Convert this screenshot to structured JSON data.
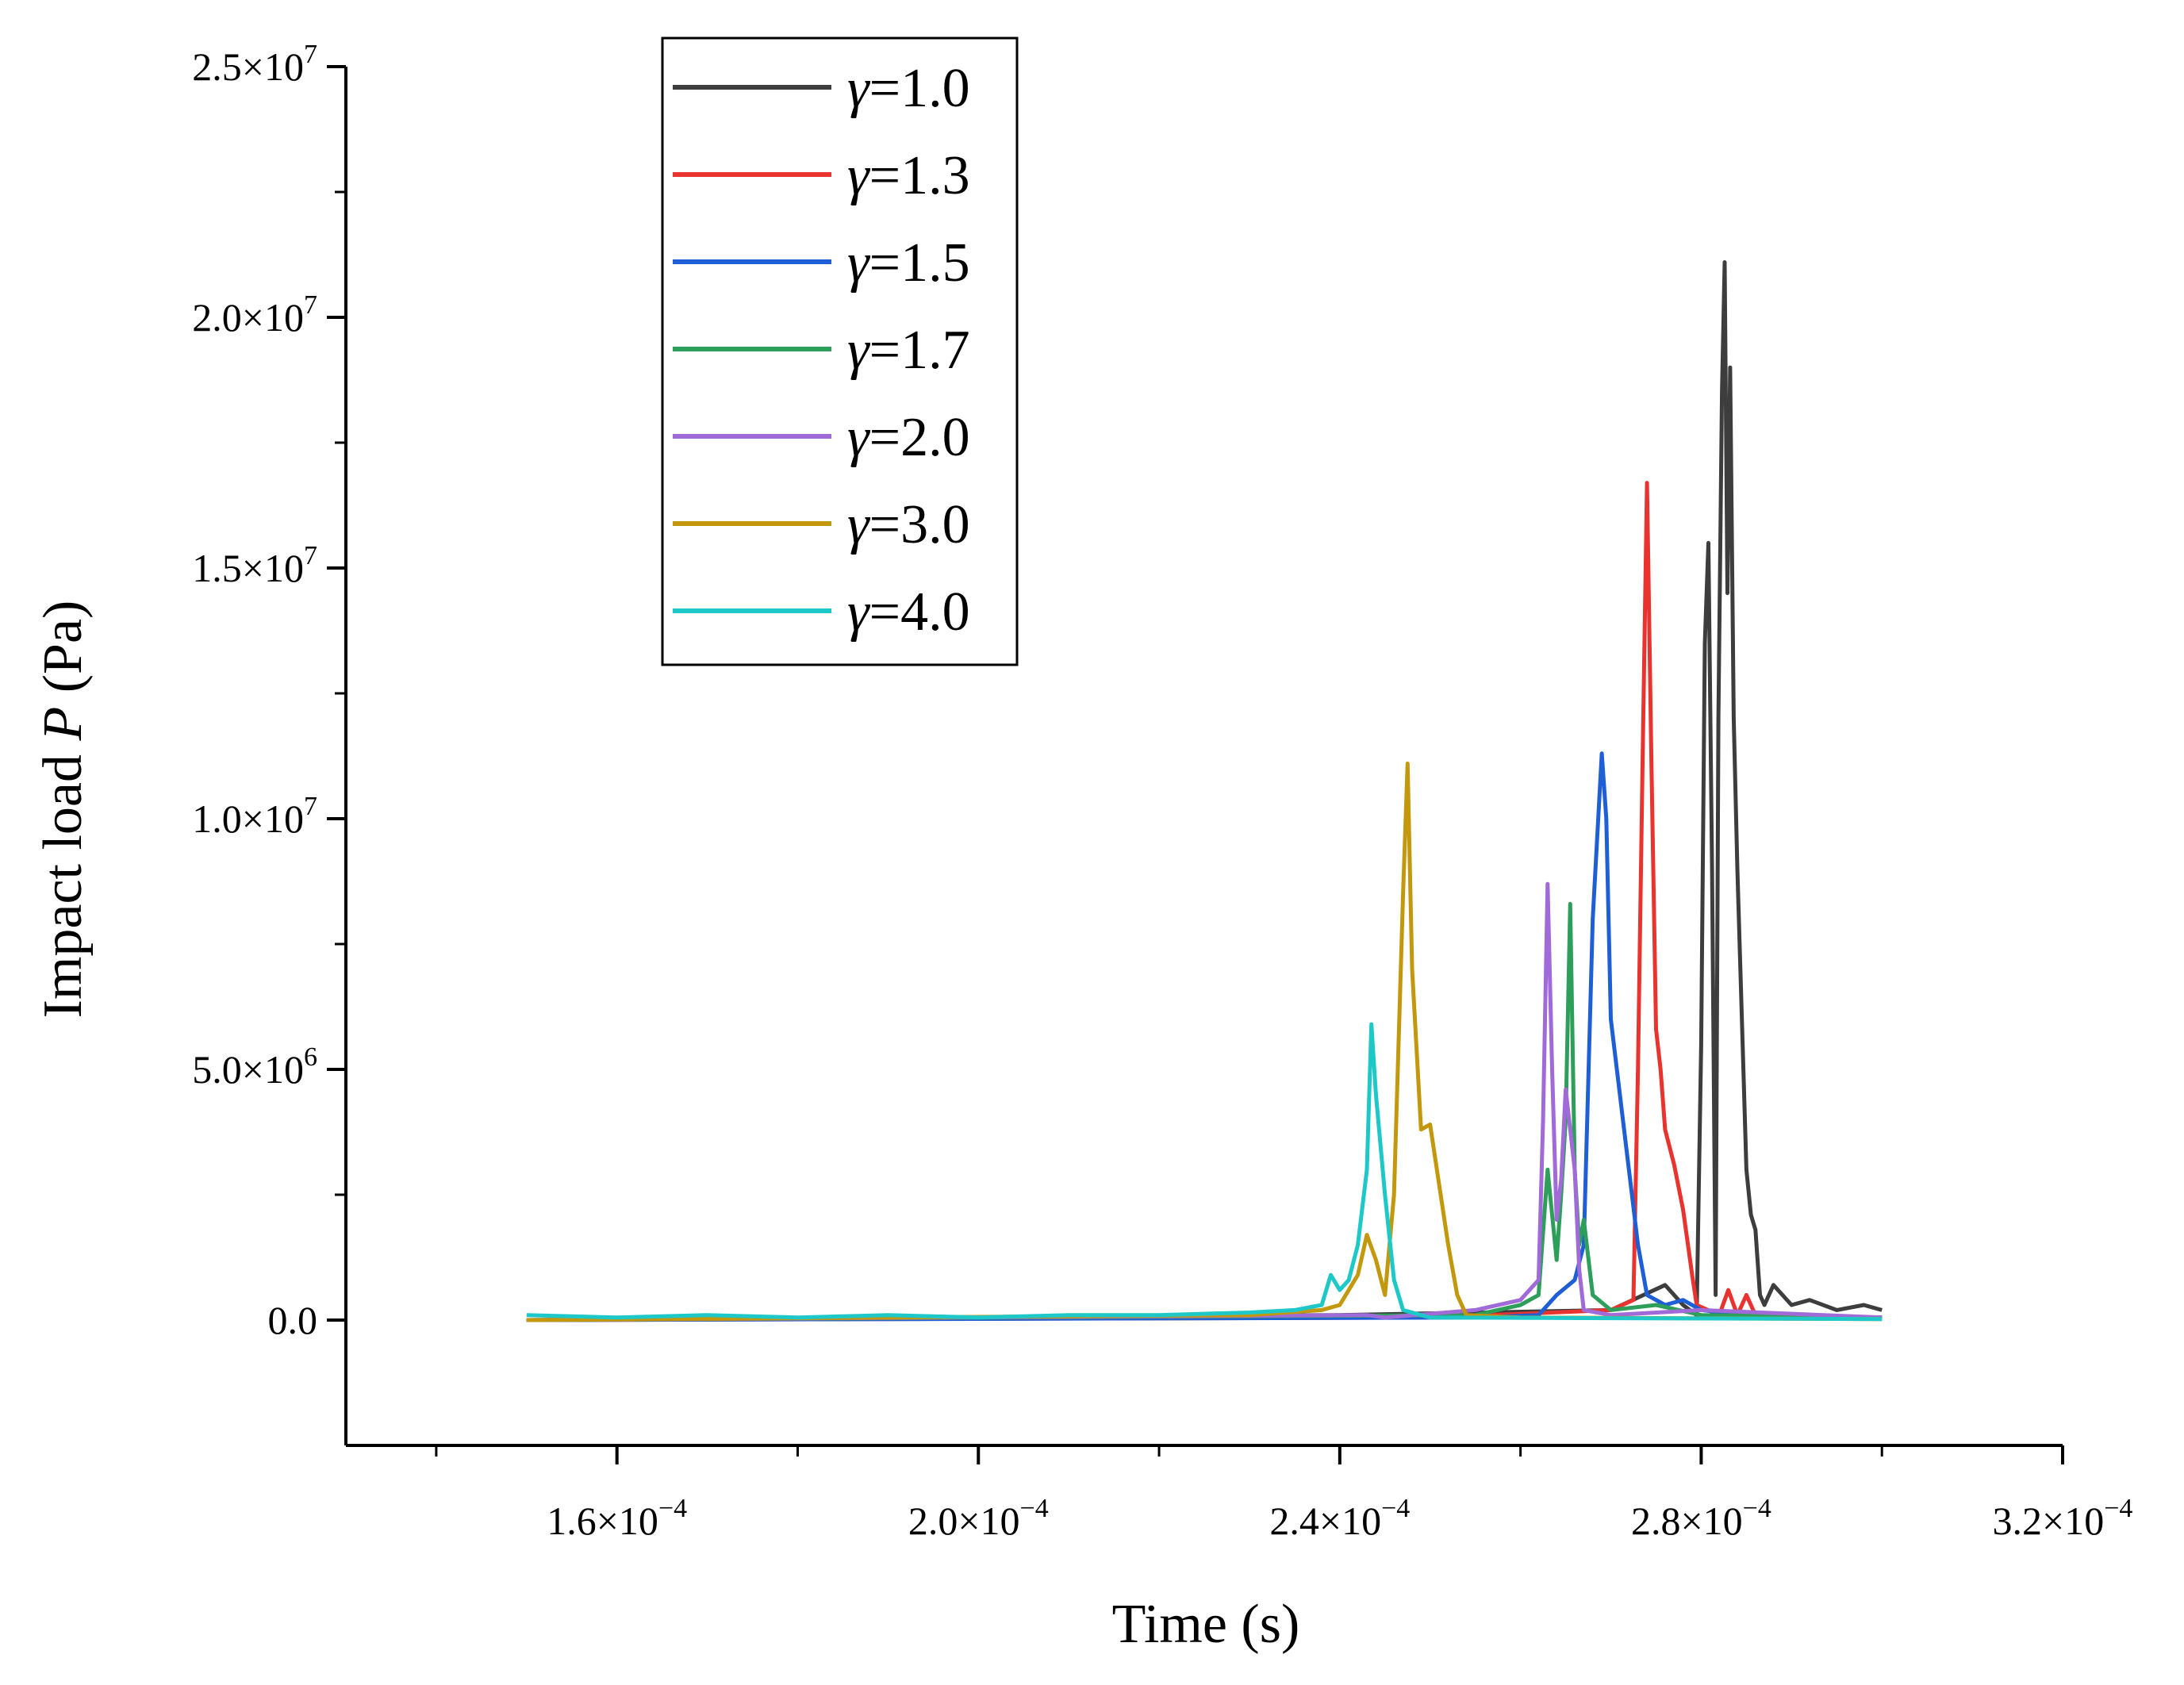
{
  "chart_data": {
    "type": "line",
    "title": "",
    "xlabel": "Time (s)",
    "ylabel_prefix": "Impact load ",
    "ylabel_var": "P",
    "ylabel_suffix": " (Pa)",
    "xlim": [
      0.00013,
      0.00032
    ],
    "ylim": [
      -2500000,
      25000000
    ],
    "x_ticks": [
      0.00016,
      0.0002,
      0.00024,
      0.00028,
      0.00032
    ],
    "x_minor_ticks": [
      0.00014,
      0.00018,
      0.00022,
      0.00026,
      0.0003
    ],
    "x_tick_labels": [
      {
        "mant": "1.6×10",
        "exp": "−4"
      },
      {
        "mant": "2.0×10",
        "exp": "−4"
      },
      {
        "mant": "2.4×10",
        "exp": "−4"
      },
      {
        "mant": "2.8×10",
        "exp": "−4"
      },
      {
        "mant": "3.2×10",
        "exp": "−4"
      }
    ],
    "y_ticks": [
      0,
      5000000,
      10000000,
      15000000,
      20000000,
      25000000
    ],
    "y_minor_ticks": [
      2500000,
      7500000,
      12500000,
      17500000,
      22500000
    ],
    "y_tick_labels": [
      {
        "mant": "0.0",
        "exp": ""
      },
      {
        "mant": "5.0×10",
        "exp": "6"
      },
      {
        "mant": "1.0×10",
        "exp": "7"
      },
      {
        "mant": "1.5×10",
        "exp": "7"
      },
      {
        "mant": "2.0×10",
        "exp": "7"
      },
      {
        "mant": "2.5×10",
        "exp": "7"
      }
    ],
    "legend_position": "top-left",
    "series": [
      {
        "name": "γ=1.0",
        "symbol": "γ",
        "value_text": "=1.0",
        "color": "#3d3d3d",
        "points": [
          [
            0.00015,
            0
          ],
          [
            0.00024,
            100000.0
          ],
          [
            0.00027,
            200000.0
          ],
          [
            0.000276,
            700000.0
          ],
          [
            0.000278,
            300000.0
          ],
          [
            0.0002795,
            100000.0
          ],
          [
            0.00028,
            5500000.0
          ],
          [
            0.0002804,
            13500000.0
          ],
          [
            0.0002808,
            15500000.0
          ],
          [
            0.0002812,
            9000000.0
          ],
          [
            0.0002816,
            500000.0
          ],
          [
            0.0002819,
            12000000.0
          ],
          [
            0.0002823,
            18500000.0
          ],
          [
            0.0002826,
            21100000.0
          ],
          [
            0.0002829,
            14500000.0
          ],
          [
            0.0002832,
            19000000.0
          ],
          [
            0.0002836,
            12000000.0
          ],
          [
            0.000284,
            9000000.0
          ],
          [
            0.0002845,
            6000000.0
          ],
          [
            0.000285,
            3000000.0
          ],
          [
            0.0002855,
            2100000.0
          ],
          [
            0.000286,
            1800000.0
          ],
          [
            0.0002865,
            500000.0
          ],
          [
            0.000287,
            300000.0
          ],
          [
            0.000288,
            700000.0
          ],
          [
            0.00029,
            300000.0
          ],
          [
            0.000292,
            400000.0
          ],
          [
            0.000295,
            200000.0
          ],
          [
            0.000298,
            300000.0
          ],
          [
            0.0003,
            200000.0
          ]
        ]
      },
      {
        "name": "γ=1.3",
        "symbol": "γ",
        "value_text": "=1.3",
        "color": "#e8332e",
        "points": [
          [
            0.00015,
            0
          ],
          [
            0.00025,
            50000.0
          ],
          [
            0.00027,
            200000.0
          ],
          [
            0.0002725,
            400000.0
          ],
          [
            0.000273,
            5000000.0
          ],
          [
            0.0002735,
            11000000.0
          ],
          [
            0.000274,
            16700000.0
          ],
          [
            0.0002745,
            11000000.0
          ],
          [
            0.000275,
            5800000.0
          ],
          [
            0.0002755,
            5000000.0
          ],
          [
            0.000276,
            3800000.0
          ],
          [
            0.000277,
            3100000.0
          ],
          [
            0.000278,
            2200000.0
          ],
          [
            0.000279,
            900000.0
          ],
          [
            0.0002795,
            300000.0
          ],
          [
            0.000282,
            100000.0
          ],
          [
            0.000283,
            600000.0
          ],
          [
            0.000284,
            100000.0
          ],
          [
            0.000285,
            500000.0
          ],
          [
            0.000286,
            100000.0
          ],
          [
            0.00029,
            100000.0
          ],
          [
            0.0003,
            50000.0
          ]
        ]
      },
      {
        "name": "γ=1.5",
        "symbol": "γ",
        "value_text": "=1.5",
        "color": "#1f5fd6",
        "points": [
          [
            0.00015,
            0
          ],
          [
            0.000255,
            50000.0
          ],
          [
            0.000262,
            100000.0
          ],
          [
            0.000264,
            500000.0
          ],
          [
            0.000266,
            800000.0
          ],
          [
            0.000267,
            1500000.0
          ],
          [
            0.000268,
            8000000.0
          ],
          [
            0.000269,
            11300000.0
          ],
          [
            0.0002695,
            10000000.0
          ],
          [
            0.00027,
            6000000.0
          ],
          [
            0.000271,
            4500000.0
          ],
          [
            0.000272,
            3000000.0
          ],
          [
            0.000273,
            1500000.0
          ],
          [
            0.000274,
            500000.0
          ],
          [
            0.000276,
            300000.0
          ],
          [
            0.000278,
            400000.0
          ],
          [
            0.00028,
            200000.0
          ],
          [
            0.000285,
            100000.0
          ],
          [
            0.0003,
            50000.0
          ]
        ]
      },
      {
        "name": "γ=1.7",
        "symbol": "γ",
        "value_text": "=1.7",
        "color": "#2e9e5b",
        "points": [
          [
            0.00015,
            0
          ],
          [
            0.000255,
            100000.0
          ],
          [
            0.00026,
            300000.0
          ],
          [
            0.000262,
            500000.0
          ],
          [
            0.000263,
            3000000.0
          ],
          [
            0.000264,
            1200000.0
          ],
          [
            0.0002645,
            2500000.0
          ],
          [
            0.000265,
            4000000.0
          ],
          [
            0.0002655,
            8300000.0
          ],
          [
            0.000266,
            3000000.0
          ],
          [
            0.0002665,
            1500000.0
          ],
          [
            0.000267,
            2000000.0
          ],
          [
            0.000268,
            500000.0
          ],
          [
            0.00027,
            200000.0
          ],
          [
            0.000275,
            300000.0
          ],
          [
            0.00028,
            100000.0
          ],
          [
            0.0003,
            50000.0
          ]
        ]
      },
      {
        "name": "γ=2.0",
        "symbol": "γ",
        "value_text": "=2.0",
        "color": "#a06ad8",
        "points": [
          [
            0.00015,
            0
          ],
          [
            0.000243,
            100000.0
          ],
          [
            0.000245,
            50000.0
          ],
          [
            0.000255,
            200000.0
          ],
          [
            0.00026,
            400000.0
          ],
          [
            0.000262,
            800000.0
          ],
          [
            0.0002625,
            4000000.0
          ],
          [
            0.000263,
            8700000.0
          ],
          [
            0.0002635,
            5000000.0
          ],
          [
            0.000264,
            2000000.0
          ],
          [
            0.0002645,
            2800000.0
          ],
          [
            0.000265,
            4600000.0
          ],
          [
            0.000266,
            3000000.0
          ],
          [
            0.0002665,
            1000000.0
          ],
          [
            0.000267,
            200000.0
          ],
          [
            0.00027,
            100000.0
          ],
          [
            0.00028,
            200000.0
          ],
          [
            0.0003,
            50000.0
          ]
        ]
      },
      {
        "name": "γ=3.0",
        "symbol": "γ",
        "value_text": "=3.0",
        "color": "#c3980d",
        "points": [
          [
            0.00015,
            0
          ],
          [
            0.00023,
            100000.0
          ],
          [
            0.000238,
            200000.0
          ],
          [
            0.00024,
            300000.0
          ],
          [
            0.000242,
            900000.0
          ],
          [
            0.000243,
            1700000.0
          ],
          [
            0.000244,
            1200000.0
          ],
          [
            0.000245,
            500000.0
          ],
          [
            0.000246,
            2500000.0
          ],
          [
            0.000247,
            8500000.0
          ],
          [
            0.0002475,
            11100000.0
          ],
          [
            0.000248,
            7000000.0
          ],
          [
            0.000249,
            3800000.0
          ],
          [
            0.00025,
            3900000.0
          ],
          [
            0.000251,
            2700000.0
          ],
          [
            0.000252,
            1500000.0
          ],
          [
            0.000253,
            500000.0
          ],
          [
            0.000254,
            100000.0
          ],
          [
            0.00026,
            50000.0
          ],
          [
            0.0003,
            20000.0
          ]
        ]
      },
      {
        "name": "γ=4.0",
        "symbol": "γ",
        "value_text": "=4.0",
        "color": "#1ec8c8",
        "points": [
          [
            0.00015,
            100000.0
          ],
          [
            0.00016,
            50000.0
          ],
          [
            0.00017,
            100000.0
          ],
          [
            0.00018,
            50000.0
          ],
          [
            0.00019,
            100000.0
          ],
          [
            0.0002,
            50000.0
          ],
          [
            0.00021,
            100000.0
          ],
          [
            0.00022,
            100000.0
          ],
          [
            0.00023,
            150000.0
          ],
          [
            0.000235,
            200000.0
          ],
          [
            0.000238,
            300000.0
          ],
          [
            0.000239,
            900000.0
          ],
          [
            0.00024,
            600000.0
          ],
          [
            0.000241,
            800000.0
          ],
          [
            0.000242,
            1500000.0
          ],
          [
            0.000243,
            3000000.0
          ],
          [
            0.0002435,
            5900000.0
          ],
          [
            0.000244,
            4500000.0
          ],
          [
            0.000245,
            2500000.0
          ],
          [
            0.000246,
            800000.0
          ],
          [
            0.000247,
            200000.0
          ],
          [
            0.00025,
            50000.0
          ],
          [
            0.0003,
            20000.0
          ]
        ]
      }
    ]
  }
}
